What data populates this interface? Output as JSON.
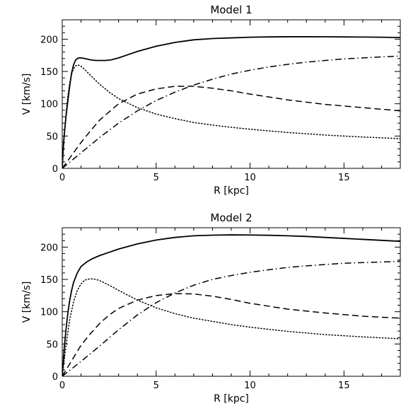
{
  "chart_data": [
    {
      "type": "line",
      "title": "Model 1",
      "xlabel": "R [kpc]",
      "ylabel": "V [km/s]",
      "xlim": [
        0,
        18
      ],
      "ylim": [
        0,
        230
      ],
      "xticks": [
        "0",
        "5",
        "10",
        "15"
      ],
      "yticks": [
        "0",
        "50",
        "100",
        "150",
        "200"
      ],
      "grid": false,
      "series": [
        {
          "style": "solid",
          "x": [
            0,
            0.05,
            0.1,
            0.2,
            0.3,
            0.4,
            0.5,
            0.6,
            0.7,
            0.8,
            0.9,
            1.0,
            1.2,
            1.5,
            1.8,
            2.0,
            2.3,
            2.6,
            3.0,
            3.5,
            4.0,
            5.0,
            6.0,
            7.0,
            8.0,
            9.0,
            10.0,
            11.0,
            12.0,
            13.0,
            14.0,
            15.0,
            16.0,
            17.0,
            18.0
          ],
          "values": [
            0,
            30,
            50,
            80,
            105,
            128,
            148,
            160,
            167,
            170,
            171,
            171,
            170,
            168,
            167,
            167,
            167,
            168,
            171,
            176,
            181,
            189,
            195,
            199,
            201,
            202,
            203,
            203.5,
            203.8,
            203.8,
            203.7,
            203.5,
            203.3,
            203,
            202.5
          ]
        },
        {
          "style": "dotted",
          "x": [
            0,
            0.1,
            0.2,
            0.3,
            0.4,
            0.5,
            0.6,
            0.7,
            0.8,
            0.9,
            1.0,
            1.2,
            1.5,
            2.0,
            2.5,
            3.0,
            4.0,
            5.0,
            6.0,
            7.0,
            8.0,
            9.0,
            10.0,
            12.0,
            14.0,
            16.0,
            18.0
          ],
          "values": [
            0,
            48,
            84,
            112,
            132,
            146,
            154,
            158.5,
            160,
            159.5,
            158,
            153,
            144,
            130,
            118,
            108,
            94,
            84,
            77,
            71,
            67,
            63.5,
            60.5,
            55.5,
            51.5,
            48.5,
            46
          ]
        },
        {
          "style": "dashed",
          "x": [
            0,
            0.5,
            1.0,
            1.5,
            2.0,
            3.0,
            4.0,
            5.0,
            6.0,
            7.0,
            8.0,
            9.0,
            10.0,
            12.0,
            14.0,
            16.0,
            18.0
          ],
          "values": [
            0,
            20,
            40,
            58,
            75,
            100,
            115,
            123,
            127,
            127,
            124,
            120,
            115,
            106,
            99,
            94,
            89
          ]
        },
        {
          "style": "dashdot",
          "x": [
            0,
            1,
            2,
            3,
            4,
            5,
            6,
            7,
            8,
            9,
            10,
            11,
            12,
            13,
            14,
            15,
            16,
            17,
            18
          ],
          "values": [
            0,
            24,
            48,
            70,
            89,
            105,
            118,
            129,
            138,
            146,
            152,
            157,
            161,
            164.5,
            167,
            169.5,
            171,
            172.5,
            174
          ]
        }
      ]
    },
    {
      "type": "line",
      "title": "Model 2",
      "xlabel": "R [kpc]",
      "ylabel": "V [km/s]",
      "xlim": [
        0,
        18
      ],
      "ylim": [
        0,
        230
      ],
      "xticks": [
        "0",
        "5",
        "10",
        "15"
      ],
      "yticks": [
        "0",
        "50",
        "100",
        "150",
        "200"
      ],
      "grid": false,
      "series": [
        {
          "style": "solid",
          "x": [
            0,
            0.05,
            0.1,
            0.2,
            0.3,
            0.4,
            0.5,
            0.6,
            0.8,
            1.0,
            1.3,
            1.6,
            2.0,
            2.5,
            3.0,
            4.0,
            5.0,
            6.0,
            7.0,
            8.0,
            9.0,
            10.0,
            11.0,
            12.0,
            13.0,
            14.0,
            15.0,
            16.0,
            17.0,
            18.0
          ],
          "values": [
            0,
            20,
            42,
            72,
            98,
            118,
            133,
            145,
            160,
            170,
            177,
            182,
            187,
            192,
            197,
            205,
            211,
            215,
            217.5,
            218.5,
            219,
            218.8,
            218.3,
            217.5,
            216.5,
            215,
            213.5,
            212,
            210.5,
            209
          ]
        },
        {
          "style": "dotted",
          "x": [
            0,
            0.2,
            0.4,
            0.6,
            0.8,
            1.0,
            1.2,
            1.5,
            1.8,
            2.0,
            2.5,
            3.0,
            4.0,
            5.0,
            6.0,
            7.0,
            8.0,
            9.0,
            10.0,
            12.0,
            14.0,
            16.0,
            18.0
          ],
          "values": [
            0,
            48,
            88,
            115,
            133,
            143,
            149,
            151,
            150,
            148,
            141,
            133,
            118,
            106,
            97,
            90,
            85,
            80,
            76,
            69.5,
            64.5,
            61,
            58
          ]
        },
        {
          "style": "dashed",
          "x": [
            0,
            0.5,
            1.0,
            1.5,
            2.0,
            2.5,
            3.0,
            4.0,
            5.0,
            6.0,
            7.0,
            8.0,
            9.0,
            10.0,
            12.0,
            14.0,
            16.0,
            18.0
          ],
          "values": [
            0,
            24,
            48,
            66,
            82,
            95,
            105,
            118,
            125,
            128,
            127.5,
            124,
            119,
            113,
            104,
            98,
            93,
            90
          ]
        },
        {
          "style": "dashdot",
          "x": [
            0,
            1,
            2,
            3,
            4,
            5,
            6,
            7,
            8,
            9,
            10,
            11,
            12,
            13,
            14,
            15,
            16,
            17,
            18
          ],
          "values": [
            0,
            23,
            47,
            72,
            95,
            114,
            129,
            141,
            150,
            156,
            161,
            165,
            168.5,
            171,
            173,
            175,
            176,
            177,
            178
          ]
        }
      ]
    }
  ]
}
